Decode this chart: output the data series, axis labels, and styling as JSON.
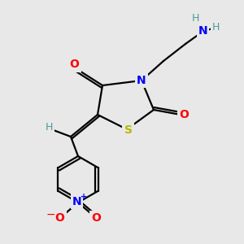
{
  "background_color": "#e8e8e8",
  "atom_colors": {
    "C": "#000000",
    "N": "#0000ff",
    "O": "#ff0000",
    "S": "#b8b800",
    "H": "#4a9a9a",
    "NH2_H": "#4a9a9a"
  },
  "bond_color": "#000000",
  "bond_width": 1.6,
  "fig_size": [
    3.0,
    3.0
  ],
  "dpi": 100
}
